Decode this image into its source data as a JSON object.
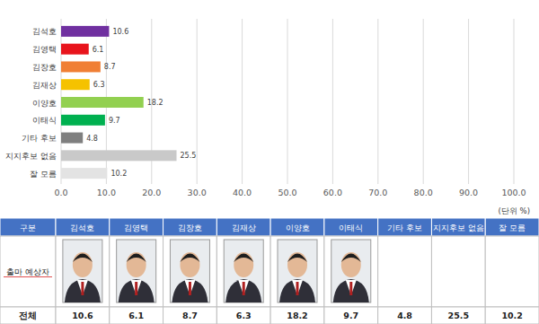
{
  "chart_data": {
    "type": "bar",
    "orientation": "horizontal",
    "categories": [
      "김석호",
      "김영택",
      "김장호",
      "김재상",
      "이양호",
      "이태식",
      "기타 후보",
      "지지후보 없음",
      "잘 모름"
    ],
    "values": [
      10.6,
      6.1,
      8.7,
      6.3,
      18.2,
      9.7,
      4.8,
      25.5,
      10.2
    ],
    "colors": [
      "#7030a0",
      "#e8141c",
      "#f07f35",
      "#f5c200",
      "#92d050",
      "#00b050",
      "#7f7f7f",
      "#c9c9c9",
      "#e3e3e3"
    ],
    "xlim": [
      0,
      100
    ],
    "xticks": [
      {
        "value": 0,
        "label": "0.0"
      },
      {
        "value": 10,
        "label": "10.0"
      },
      {
        "value": 20,
        "label": "20.0"
      },
      {
        "value": 30,
        "label": "30.0"
      },
      {
        "value": 40,
        "label": "40.0"
      },
      {
        "value": 50,
        "label": "50.0"
      },
      {
        "value": 60,
        "label": "60.0"
      },
      {
        "value": 70,
        "label": "70.0"
      },
      {
        "value": 80,
        "label": "80.0"
      },
      {
        "value": 90,
        "label": "90.0"
      },
      {
        "value": 100,
        "label": "100.0"
      }
    ],
    "grid": true,
    "data_labels": true,
    "annotation": "(단위 %)"
  },
  "table": {
    "header": [
      "구분",
      "김석호",
      "김영택",
      "김장호",
      "김재상",
      "이양호",
      "이태식",
      "기타 후보",
      "지지후보 없음",
      "잘 모름"
    ],
    "photo_row": {
      "label": "출마 예상자",
      "has_photo": [
        true,
        true,
        true,
        true,
        true,
        true,
        false,
        false,
        false
      ]
    },
    "total_row": {
      "label": "전체",
      "values": [
        10.6,
        6.1,
        8.7,
        6.3,
        18.2,
        9.7,
        4.8,
        25.5,
        10.2
      ]
    }
  }
}
